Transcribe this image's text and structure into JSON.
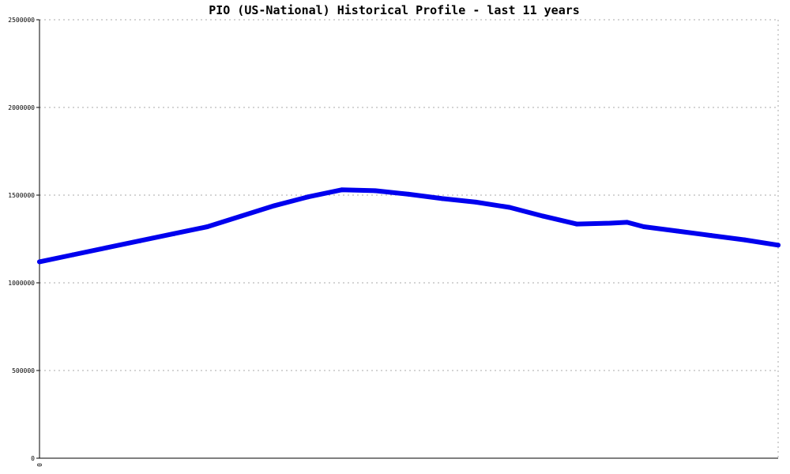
{
  "chart_data": {
    "type": "line",
    "title": "PIO (US-National) Historical Profile - last 11 years",
    "xlabel": "",
    "ylabel": "",
    "x_tick_labels": [
      "0"
    ],
    "yticks": [
      0,
      500000,
      1000000,
      1500000,
      2000000,
      2500000
    ],
    "ytick_labels": [
      "0",
      "500000",
      "1000000",
      "1500000",
      "2000000",
      "2500000"
    ],
    "ylim": [
      0,
      2500000
    ],
    "xlim": [
      0,
      22
    ],
    "grid": true,
    "legend": "none",
    "series": [
      {
        "color": "#0000ee",
        "x": [
          0,
          1,
          2,
          3,
          4,
          5,
          6,
          7,
          8,
          9,
          10,
          11,
          12,
          13,
          14,
          15,
          16,
          17,
          17.5,
          18,
          19,
          20,
          21,
          22
        ],
        "y": [
          1120000,
          1160000,
          1200000,
          1240000,
          1280000,
          1320000,
          1380000,
          1440000,
          1490000,
          1530000,
          1525000,
          1505000,
          1480000,
          1460000,
          1430000,
          1380000,
          1335000,
          1340000,
          1345000,
          1320000,
          1295000,
          1270000,
          1245000,
          1215000
        ]
      }
    ]
  }
}
